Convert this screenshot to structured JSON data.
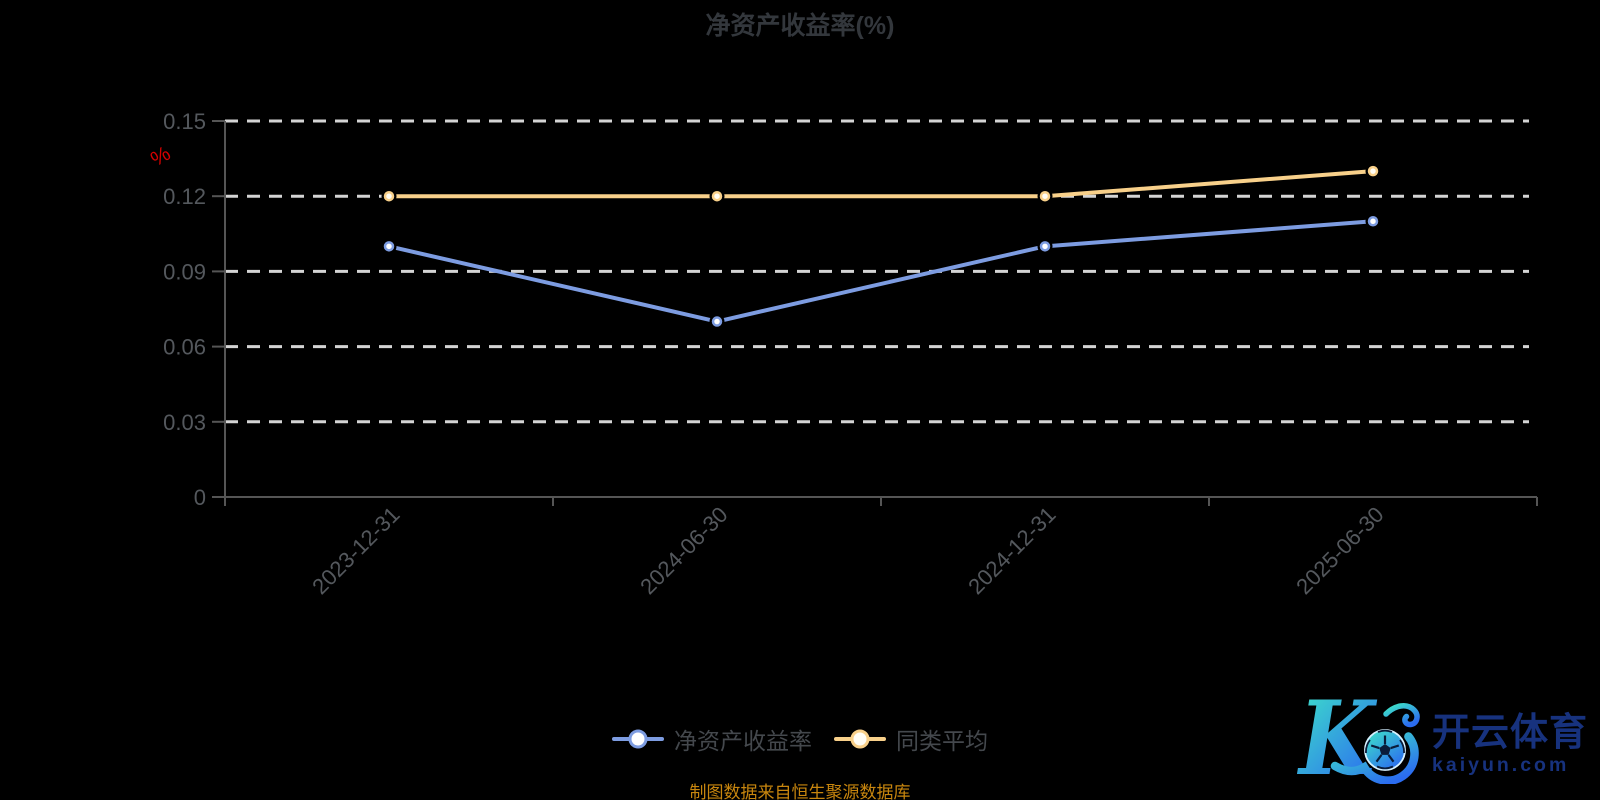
{
  "title": "净资产收益率(%)",
  "source_note": "制图数据来自恒生聚源数据库",
  "logo": {
    "monogram": "K",
    "brand": "开云体育",
    "domain": "kaiyun.com"
  },
  "colors": {
    "background": "#000000",
    "title": "#33373c",
    "axis_label": "#54585d",
    "axis_line": "#555555",
    "gridline": "#d4d4d4",
    "y_name": "#d40000",
    "source_note": "#c8860e",
    "logo_text": "#17327e",
    "logo_gradient_start": "#3fe8c6",
    "logo_gradient_end": "#2b6cf0"
  },
  "chart_data": {
    "type": "line",
    "title": "净资产收益率(%)",
    "x": [
      "2023-12-31",
      "2024-06-30",
      "2024-12-31",
      "2025-06-30"
    ],
    "series": [
      {
        "name": "净资产收益率",
        "color": "#7d9ce1",
        "marker_fill": "#ffffff",
        "values": [
          0.1,
          0.07,
          0.1,
          0.11
        ]
      },
      {
        "name": "同类平均",
        "color": "#f8d08a",
        "marker_fill": "#fffdf5",
        "values": [
          0.12,
          0.12,
          0.12,
          0.13
        ]
      }
    ],
    "ylabel": "%",
    "ylim": [
      0,
      0.15
    ],
    "yticks": [
      0,
      0.03,
      0.06,
      0.09,
      0.12,
      0.15
    ],
    "grid": "dashed-horizontal",
    "legend_position": "bottom"
  }
}
